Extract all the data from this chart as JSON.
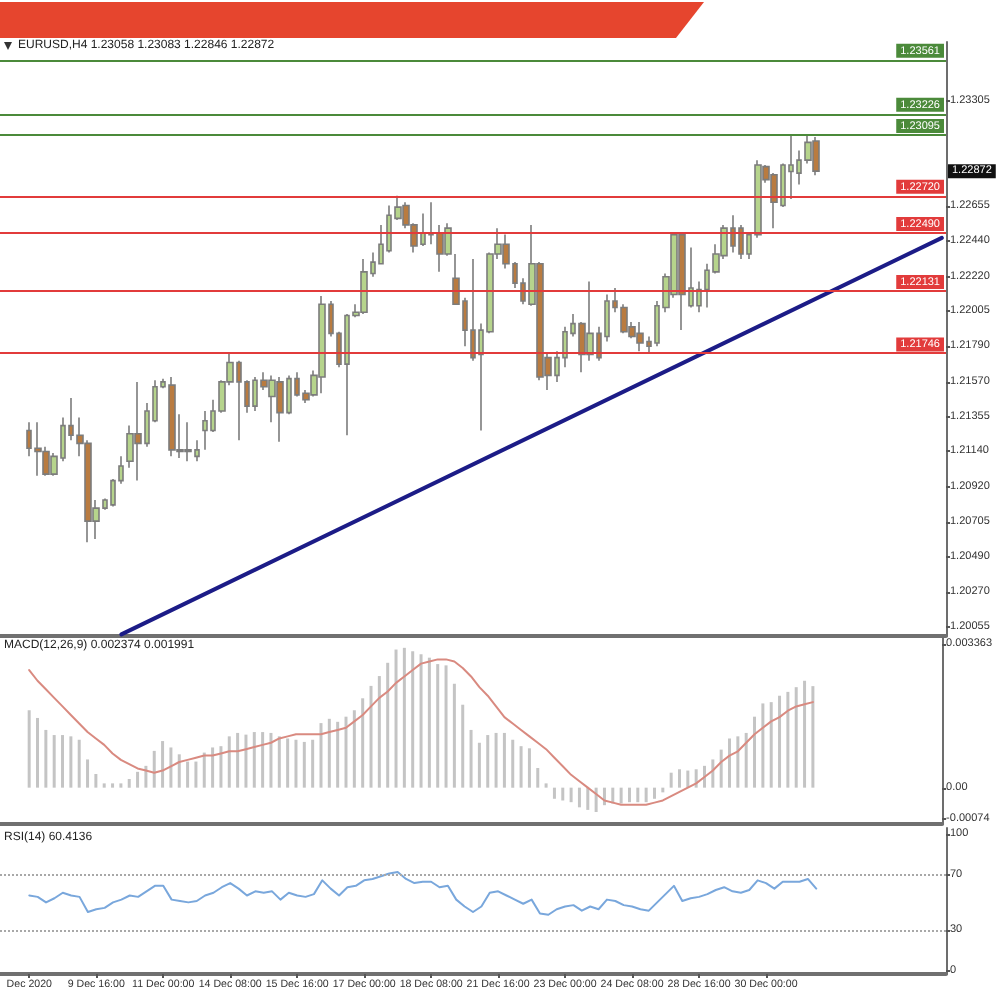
{
  "chart_data": [
    {
      "type": "candlestick",
      "title": "EURUSD,H4 1.23058 1.23083 1.22846 1.22872",
      "categories": [
        null,
        null,
        null,
        null,
        null,
        null,
        null,
        null,
        null,
        null,
        null,
        null,
        null,
        null,
        null,
        null,
        null,
        null,
        null,
        null,
        null,
        null,
        null,
        null,
        null,
        null,
        null,
        null,
        null,
        null,
        null,
        null,
        null,
        null,
        null,
        null,
        null,
        null,
        null,
        null,
        null,
        null,
        null,
        null,
        null,
        null,
        null,
        null,
        null,
        null,
        null,
        null,
        null,
        null,
        null,
        null,
        null,
        null,
        null,
        null,
        null,
        null,
        null,
        null,
        null,
        null,
        null,
        null,
        null,
        null,
        null,
        null,
        null,
        null,
        null,
        null,
        null,
        null,
        null,
        null,
        null,
        null,
        null,
        null,
        null,
        null,
        null,
        null,
        null,
        null,
        null,
        null,
        null,
        null,
        null,
        null,
        null,
        null,
        null,
        null,
        null,
        null,
        null,
        null,
        null,
        null,
        null,
        null,
        null,
        null,
        null,
        null,
        null
      ],
      "ohlc": [
        null,
        null,
        null,
        [
          1.2127,
          1.2132,
          1.2111,
          1.2116
        ],
        [
          1.2116,
          1.2132,
          1.2099,
          1.2114
        ],
        [
          1.2114,
          1.2117,
          1.2099,
          1.21
        ],
        [
          1.21,
          1.2113,
          1.2099,
          1.2111
        ],
        [
          1.211,
          1.2135,
          1.2108,
          1.213
        ],
        [
          1.213,
          1.2147,
          1.2121,
          1.2124
        ],
        [
          1.2124,
          1.2135,
          1.2111,
          1.2119
        ],
        [
          1.2119,
          1.2121,
          1.2058,
          1.2071
        ],
        [
          1.2071,
          1.2084,
          1.206,
          1.2079
        ],
        [
          1.2079,
          1.2085,
          1.2078,
          1.2084
        ],
        [
          1.2081,
          1.2097,
          1.208,
          1.2096
        ],
        [
          1.2096,
          1.2111,
          1.2094,
          1.2105
        ],
        [
          1.2108,
          1.213,
          1.2104,
          1.2125
        ],
        [
          1.2125,
          1.2157,
          1.2096,
          1.2119
        ],
        [
          1.2119,
          1.2144,
          1.2117,
          1.2139
        ],
        [
          1.2133,
          1.2158,
          1.2132,
          1.2154
        ],
        [
          1.2154,
          1.2159,
          1.2153,
          1.2157
        ],
        [
          1.2155,
          1.216,
          1.2111,
          1.2115
        ],
        [
          1.2115,
          1.2137,
          1.211,
          1.2114
        ],
        [
          1.2114,
          1.2132,
          1.2108,
          1.2115
        ],
        [
          1.2111,
          1.2121,
          1.2108,
          1.2115
        ],
        [
          1.2127,
          1.2139,
          1.2115,
          1.2133
        ],
        [
          1.2127,
          1.2146,
          1.2126,
          1.2139
        ],
        [
          1.2139,
          1.2158,
          1.2138,
          1.2157
        ],
        [
          1.2157,
          1.2175,
          1.2155,
          1.2169
        ],
        [
          1.2169,
          1.217,
          1.2121,
          1.2157
        ],
        [
          1.2157,
          1.2158,
          1.2138,
          1.2142
        ],
        [
          1.2142,
          1.216,
          1.2139,
          1.2158
        ],
        [
          1.2158,
          1.2163,
          1.2152,
          1.2154
        ],
        [
          1.2148,
          1.2161,
          1.2132,
          1.2158
        ],
        [
          1.2157,
          1.216,
          1.212,
          1.2138
        ],
        [
          1.2138,
          1.2161,
          1.2137,
          1.2159
        ],
        [
          1.2159,
          1.2163,
          1.2148,
          1.2149
        ],
        [
          1.215,
          1.2152,
          1.2144,
          1.2146
        ],
        [
          1.2149,
          1.2164,
          1.2148,
          1.2161
        ],
        [
          1.216,
          1.221,
          1.215,
          1.2205
        ],
        [
          1.2205,
          1.2207,
          1.2185,
          1.2187
        ],
        [
          1.2187,
          1.2188,
          1.2166,
          1.2168
        ],
        [
          1.2168,
          1.2199,
          1.2124,
          1.2198
        ],
        [
          1.2198,
          1.2205,
          1.2197,
          1.22
        ],
        [
          1.22,
          1.2233,
          1.2199,
          1.2225
        ],
        [
          1.2224,
          1.2237,
          1.2222,
          1.2231
        ],
        [
          1.223,
          1.2254,
          1.223,
          1.2242
        ],
        [
          1.2238,
          1.2266,
          1.2237,
          1.226
        ],
        [
          1.2258,
          1.2272,
          1.2257,
          1.2265
        ],
        [
          1.2266,
          1.2268,
          1.2252,
          1.2254
        ],
        [
          1.2254,
          1.2255,
          1.2237,
          1.2241
        ],
        [
          1.2242,
          1.2261,
          1.2241,
          1.2249
        ],
        [
          1.2248,
          1.2268,
          1.2242,
          1.2249
        ],
        [
          1.2249,
          1.2254,
          1.2225,
          1.2236
        ],
        [
          1.2236,
          1.2255,
          1.2235,
          1.2252
        ],
        [
          1.2221,
          1.2236,
          1.2205,
          1.2205
        ],
        [
          1.2207,
          1.2209,
          1.2179,
          1.2189
        ],
        [
          1.2189,
          1.2233,
          1.217,
          1.2172
        ],
        [
          1.2174,
          1.2193,
          1.2127,
          1.2189
        ],
        [
          1.2188,
          1.2237,
          1.2187,
          1.2236
        ],
        [
          1.2236,
          1.2252,
          1.2233,
          1.2242
        ],
        [
          1.2242,
          1.2248,
          1.2227,
          1.223
        ],
        [
          1.223,
          1.2231,
          1.2215,
          1.2218
        ],
        [
          1.2218,
          1.2221,
          1.2205,
          1.2207
        ],
        [
          1.2205,
          1.2254,
          1.2204,
          1.223
        ],
        [
          1.223,
          1.2231,
          1.2158,
          1.216
        ],
        [
          1.2172,
          1.2175,
          1.2152,
          1.2161
        ],
        [
          1.2161,
          1.2176,
          1.2157,
          1.2172
        ],
        [
          1.2172,
          1.2191,
          1.2166,
          1.2188
        ],
        [
          1.2187,
          1.2199,
          1.2185,
          1.2193
        ],
        [
          1.2193,
          1.2194,
          1.2163,
          1.2174
        ],
        [
          1.2174,
          1.2219,
          1.217,
          1.2187
        ],
        [
          1.2187,
          1.2191,
          1.217,
          1.2172
        ],
        [
          1.2185,
          1.2211,
          1.2182,
          1.2207
        ],
        [
          1.2207,
          1.2215,
          1.22,
          1.2203
        ],
        [
          1.2203,
          1.2205,
          1.2187,
          1.2188
        ],
        [
          1.2191,
          1.2194,
          1.2184,
          1.2185
        ],
        [
          1.2187,
          1.2194,
          1.2176,
          1.2181
        ],
        [
          1.2182,
          1.2185,
          1.2175,
          1.2179
        ],
        [
          1.2181,
          1.2207,
          1.2179,
          1.2204
        ],
        [
          1.2203,
          1.2224,
          1.22,
          1.2222
        ],
        [
          1.2211,
          1.2249,
          1.2209,
          1.2248
        ],
        [
          1.2248,
          1.2249,
          1.2189,
          1.2211
        ],
        [
          1.2204,
          1.224,
          1.2203,
          1.2215
        ],
        [
          1.2204,
          1.2219,
          1.22,
          1.2214
        ],
        [
          1.2214,
          1.223,
          1.2203,
          1.2226
        ],
        [
          1.2225,
          1.2242,
          1.2224,
          1.2236
        ],
        [
          1.2235,
          1.2254,
          1.2233,
          1.2252
        ],
        [
          1.2252,
          1.226,
          1.2237,
          1.2241
        ],
        [
          1.2252,
          1.2254,
          1.2233,
          1.2236
        ],
        [
          1.2236,
          1.2249,
          1.2233,
          1.2248
        ],
        [
          1.2248,
          1.2294,
          1.2246,
          1.2291
        ],
        [
          1.229,
          1.2291,
          1.228,
          1.2282
        ],
        [
          1.2285,
          1.2286,
          1.2252,
          1.2268
        ],
        [
          1.2266,
          1.2292,
          1.2265,
          1.2291
        ],
        [
          1.2287,
          1.2309,
          1.227,
          1.2291
        ],
        [
          1.2286,
          1.23,
          1.2279,
          1.2294
        ],
        [
          1.2294,
          1.2309,
          1.2292,
          1.2305
        ],
        [
          1.23058,
          1.23083,
          1.22846,
          1.22872
        ],
        null,
        null,
        null,
        null,
        null,
        null,
        null,
        null,
        null,
        null,
        null,
        null,
        null,
        null,
        null
      ],
      "colors": [
        null,
        null,
        null,
        "#b97b40",
        "#b97b40",
        "#b97b40",
        "#b6d48c",
        "#b6d48c",
        "#b97b40",
        "#b97b40",
        "#b97b40",
        "#b6d48c",
        "#b6d48c",
        "#b6d48c",
        "#b6d48c",
        "#b6d48c",
        "#b97b40",
        "#b6d48c",
        "#b6d48c",
        "#b6d48c",
        "#b97b40",
        "#b97b40",
        "#b6d48c",
        "#b6d48c",
        "#b6d48c",
        "#b6d48c",
        "#b6d48c",
        "#b6d48c",
        "#b97b40",
        "#b97b40",
        "#b6d48c",
        "#b97b40",
        "#b6d48c",
        "#b97b40",
        "#b6d48c",
        "#b97b40",
        "#b97b40",
        "#b6d48c",
        "#b6d48c",
        "#b97b40",
        "#b97b40",
        "#b6d48c",
        "#b6d48c",
        "#b6d48c",
        "#b6d48c",
        "#b6d48c",
        "#b6d48c",
        "#b6d48c",
        "#b97b40",
        "#b97b40",
        "#b6d48c",
        "#b6d48c",
        "#b97b40",
        "#b6d48c",
        "#b97b40",
        "#b97b40",
        "#b97b40",
        "#b6d48c",
        "#b6d48c",
        "#b6d48c",
        "#b97b40",
        "#b97b40",
        "#b97b40",
        "#b6d48c",
        "#b97b40",
        "#b97b40",
        "#b6d48c",
        "#b6d48c",
        "#b6d48c",
        "#b97b40",
        "#b6d48c",
        "#b97b40",
        "#b6d48c",
        "#b97b40",
        "#b97b40",
        "#b97b40",
        "#b97b40",
        "#b97b40",
        "#b6d48c",
        "#b6d48c",
        "#b6d48c",
        "#b97b40",
        "#b6d48c",
        "#b6d48c",
        "#b6d48c",
        "#b6d48c",
        "#b6d48c",
        "#b97b40",
        "#b97b40",
        "#b6d48c",
        "#b6d48c",
        "#b97b40",
        "#b97b40",
        "#b6d48c",
        "#b6d48c",
        "#b6d48c",
        "#b6d48c",
        "#b97b40",
        null,
        null,
        null,
        null,
        null,
        null,
        null,
        null,
        null,
        null,
        null,
        null,
        null,
        null,
        null
      ],
      "series": [
        {
          "type": "line",
          "color": "#1c1c87",
          "values": [
            null,
            null,
            null,
            null,
            null,
            null,
            null,
            null,
            null,
            null,
            null,
            null,
            null,
            null,
            1.2001,
            null,
            null,
            null,
            null,
            null,
            null,
            null,
            null,
            null,
            null,
            null,
            null,
            null,
            null,
            null,
            null,
            null,
            null,
            null,
            null,
            null,
            null,
            null,
            null,
            null,
            null,
            null,
            null,
            null,
            null,
            null,
            null,
            null,
            null,
            null,
            null,
            null,
            null,
            null,
            null,
            null,
            null,
            null,
            null,
            null,
            null,
            null,
            null,
            null,
            null,
            null,
            null,
            null,
            null,
            null,
            null,
            null,
            null,
            null,
            null,
            null,
            null,
            null,
            null,
            null,
            null,
            null,
            null,
            null,
            null,
            null,
            null,
            null,
            null,
            null,
            null,
            null,
            null,
            null,
            null,
            null,
            null,
            null,
            null,
            null,
            null,
            null,
            null,
            null,
            null,
            null,
            null,
            null,
            null,
            null,
            null,
            null,
            1.2246
          ]
        }
      ],
      "ylim": [
        1.2,
        1.2367
      ],
      "yticks": [
        1.20055,
        {
          "value": 1.2027,
          "label": "1.20270"
        },
        {
          "value": 1.2049,
          "label": "1.20490"
        },
        1.20705,
        {
          "value": 1.2092,
          "label": "1.20920"
        },
        {
          "value": 1.2114,
          "label": "1.21140"
        },
        1.21355,
        {
          "value": 1.2157,
          "label": "1.21570"
        },
        {
          "value": 1.2179,
          "label": "1.21790"
        },
        1.22005,
        {
          "value": 1.2222,
          "label": "1.22220"
        },
        {
          "value": 1.2244,
          "label": "1.22440"
        },
        1.22655,
        1.23305
      ],
      "tick_labels": "y",
      "ref_lines": [
        {
          "axis": "y",
          "value": 1.23561,
          "label": "1.23561",
          "color": "#4b8a3a"
        },
        {
          "axis": "y",
          "value": 1.23226,
          "label": "1.23226",
          "color": "#4b8a3a"
        },
        {
          "axis": "y",
          "value": 1.23095,
          "label": "1.23095",
          "color": "#4b8a3a"
        },
        {
          "axis": "y",
          "value": 1.2272,
          "label": "1.22720",
          "color": "#e23b3b"
        },
        {
          "axis": "y",
          "value": 1.2249,
          "label": "1.22490",
          "color": "#e23b3b"
        },
        {
          "axis": "y",
          "value": 1.22131,
          "label": "1.22131",
          "color": "#e23b3b"
        },
        {
          "axis": "y",
          "value": 1.21746,
          "label": "1.21746",
          "color": "#e23b3b"
        }
      ],
      "annotations": [
        "1.22872"
      ]
    },
    {
      "type": "bar",
      "title": "MACD(12,26,9) 0.002374 0.001991",
      "categories": [
        null,
        null,
        null,
        null,
        null,
        null,
        null,
        null,
        null,
        null,
        null,
        null,
        null,
        null,
        null,
        null,
        null,
        null,
        null,
        null,
        null,
        null,
        null,
        null,
        null,
        null,
        null,
        null,
        null,
        null,
        null,
        null,
        null,
        null,
        null,
        null,
        null,
        null,
        null,
        null,
        null,
        null,
        null,
        null,
        null,
        null,
        null,
        null,
        null,
        null,
        null,
        null,
        null,
        null,
        null,
        null,
        null,
        null,
        null,
        null,
        null,
        null,
        null,
        null,
        null,
        null,
        null,
        null,
        null,
        null,
        null,
        null,
        null,
        null,
        null,
        null,
        null,
        null,
        null,
        null,
        null,
        null,
        null,
        null,
        null,
        null,
        null,
        null,
        null,
        null,
        null,
        null,
        null,
        null,
        null,
        null,
        null,
        null,
        null,
        null,
        null,
        null,
        null,
        null,
        null,
        null,
        null,
        null,
        null,
        null,
        null,
        null,
        null
      ],
      "series": [
        {
          "type": "bar",
          "color": "#c4c4c4",
          "values": [
            null,
            null,
            null,
            0.00181,
            0.00163,
            0.00135,
            0.00123,
            0.00123,
            0.0012,
            0.00112,
            0.00066,
            0.00032,
            0.0001,
            0.0001,
            0.0001,
            0.0002,
            0.00037,
            0.00051,
            0.00086,
            0.00109,
            0.00094,
            0.00078,
            0.00061,
            0.00061,
            0.00082,
            0.00094,
            0.00097,
            0.0012,
            0.00128,
            0.00124,
            0.0013,
            0.0013,
            0.00128,
            0.0012,
            0.00115,
            0.00112,
            0.00107,
            0.00112,
            0.00151,
            0.00161,
            0.00154,
            0.00166,
            0.00181,
            0.00209,
            0.00238,
            0.00261,
            0.00292,
            0.00323,
            0.00327,
            0.00319,
            0.00312,
            0.00304,
            0.00289,
            0.00286,
            0.00243,
            0.00194,
            0.00135,
            0.00105,
            0.00123,
            0.00128,
            0.00128,
            0.00112,
            0.00097,
            0.00092,
            0.00046,
            0.0001,
            -0.00026,
            -0.0003,
            -0.00034,
            -0.00046,
            -0.00052,
            -0.00057,
            -0.00041,
            -0.00037,
            -0.00037,
            -0.00034,
            -0.00034,
            -0.00034,
            -0.00026,
            -0.00011,
            0.00035,
            0.00043,
            0.0004,
            0.00043,
            0.00051,
            0.00066,
            0.00089,
            0.00115,
            0.0012,
            0.00128,
            0.00166,
            0.00197,
            0.002,
            0.00215,
            0.00224,
            0.00235,
            0.0025,
            0.002374,
            null,
            null,
            null,
            null,
            null,
            null,
            null,
            null,
            null,
            null,
            null,
            null,
            null,
            null,
            null
          ]
        },
        {
          "type": "line",
          "color": "#d98a80",
          "values": [
            null,
            null,
            null,
            0.00275,
            0.0025,
            0.0023,
            0.0021,
            0.0019,
            0.0017,
            0.0015,
            0.0013,
            0.00115,
            0.001,
            0.0008,
            0.00065,
            0.00055,
            0.00045,
            0.0004,
            0.00035,
            0.0004,
            0.0005,
            0.0006,
            0.00065,
            0.0007,
            0.00075,
            0.00075,
            0.0008,
            0.00085,
            0.00085,
            0.0009,
            0.00095,
            0.001,
            0.00105,
            0.00115,
            0.0012,
            0.00125,
            0.00125,
            0.00125,
            0.00125,
            0.0013,
            0.00135,
            0.0014,
            0.00155,
            0.0017,
            0.0019,
            0.0021,
            0.00225,
            0.00245,
            0.0026,
            0.00275,
            0.0029,
            0.00295,
            0.003,
            0.003,
            0.00295,
            0.0028,
            0.0026,
            0.00235,
            0.00215,
            0.0019,
            0.00165,
            0.0015,
            0.00135,
            0.0012,
            0.00105,
            0.0009,
            0.0007,
            0.0005,
            0.0003,
            0.00015,
            0,
            -0.00015,
            -0.0003,
            -0.00035,
            -0.0004,
            -0.0004,
            -0.0004,
            -0.0004,
            -0.00035,
            -0.0003,
            -0.0002,
            -0.0001,
            0,
            0.0001,
            0.00025,
            0.0004,
            0.0006,
            0.00075,
            0.00085,
            0.00105,
            0.00125,
            0.0014,
            0.00155,
            0.00165,
            0.0018,
            0.0019,
            0.00195,
            0.002,
            null,
            null,
            null,
            null,
            null,
            null,
            null,
            null,
            null,
            null,
            null,
            null,
            null,
            null,
            null
          ]
        }
      ],
      "ylim": [
        -0.00085,
        0.0035
      ],
      "yticks": [
        -0.00074,
        {
          "value": 0,
          "label": "0.00"
        },
        0.003363
      ],
      "tick_labels": "y"
    },
    {
      "type": "line",
      "title": "RSI(14) 60.4136",
      "categories": [
        null,
        null,
        null,
        "Dec 2020",
        null,
        null,
        null,
        null,
        null,
        null,
        null,
        "9 Dec 16:00",
        null,
        null,
        null,
        null,
        null,
        null,
        null,
        "11 Dec 00:00",
        null,
        null,
        null,
        null,
        null,
        null,
        null,
        "14 Dec 08:00",
        null,
        null,
        null,
        null,
        null,
        null,
        null,
        "15 Dec 16:00",
        null,
        null,
        null,
        null,
        null,
        null,
        null,
        "17 Dec 00:00",
        null,
        null,
        null,
        null,
        null,
        null,
        null,
        "18 Dec 08:00",
        null,
        null,
        null,
        null,
        null,
        null,
        null,
        "21 Dec 16:00",
        null,
        null,
        null,
        null,
        null,
        null,
        null,
        "23 Dec 00:00",
        null,
        null,
        null,
        null,
        null,
        null,
        null,
        "24 Dec 08:00",
        null,
        null,
        null,
        null,
        null,
        null,
        null,
        "28 Dec 16:00",
        null,
        null,
        null,
        null,
        null,
        null,
        null,
        "30 Dec 00:00",
        null,
        null,
        null,
        null,
        null,
        null,
        null,
        null,
        null,
        null,
        null,
        null,
        null,
        null,
        null,
        null,
        null,
        null,
        null,
        null,
        null
      ],
      "series": [
        {
          "color": "#79a7dc",
          "values": [
            null,
            null,
            null,
            55,
            54,
            50,
            53,
            57,
            55,
            54,
            43,
            45,
            46,
            50,
            52,
            55,
            54,
            58,
            62,
            62,
            52,
            51,
            50,
            51,
            55,
            57,
            61,
            64,
            60,
            55,
            58,
            57,
            58,
            52,
            57,
            55,
            54,
            56,
            66,
            60,
            55,
            61,
            62,
            66,
            67,
            69,
            71,
            72,
            67,
            64,
            65,
            65,
            61,
            62,
            52,
            47,
            43,
            47,
            57,
            58,
            55,
            52,
            49,
            52,
            42,
            41,
            45,
            47,
            48,
            44,
            47,
            45,
            52,
            51,
            48,
            47,
            45,
            44,
            50,
            56,
            62,
            51,
            53,
            54,
            56,
            59,
            61,
            58,
            57,
            59,
            66,
            64,
            60,
            65,
            65,
            65,
            67,
            60,
            null,
            null,
            null,
            null,
            null,
            null,
            null,
            null,
            null,
            null,
            null,
            null,
            null,
            null,
            null
          ]
        }
      ],
      "ylim": [
        -2,
        104
      ],
      "yticks": [
        0,
        30,
        70,
        100
      ],
      "ref_lines": [
        {
          "axis": "y",
          "value": 70,
          "color": "#a8a8a8",
          "line_style": "dotted"
        },
        {
          "axis": "y",
          "value": 30,
          "color": "#a8a8a8",
          "line_style": "dotted"
        }
      ]
    }
  ]
}
